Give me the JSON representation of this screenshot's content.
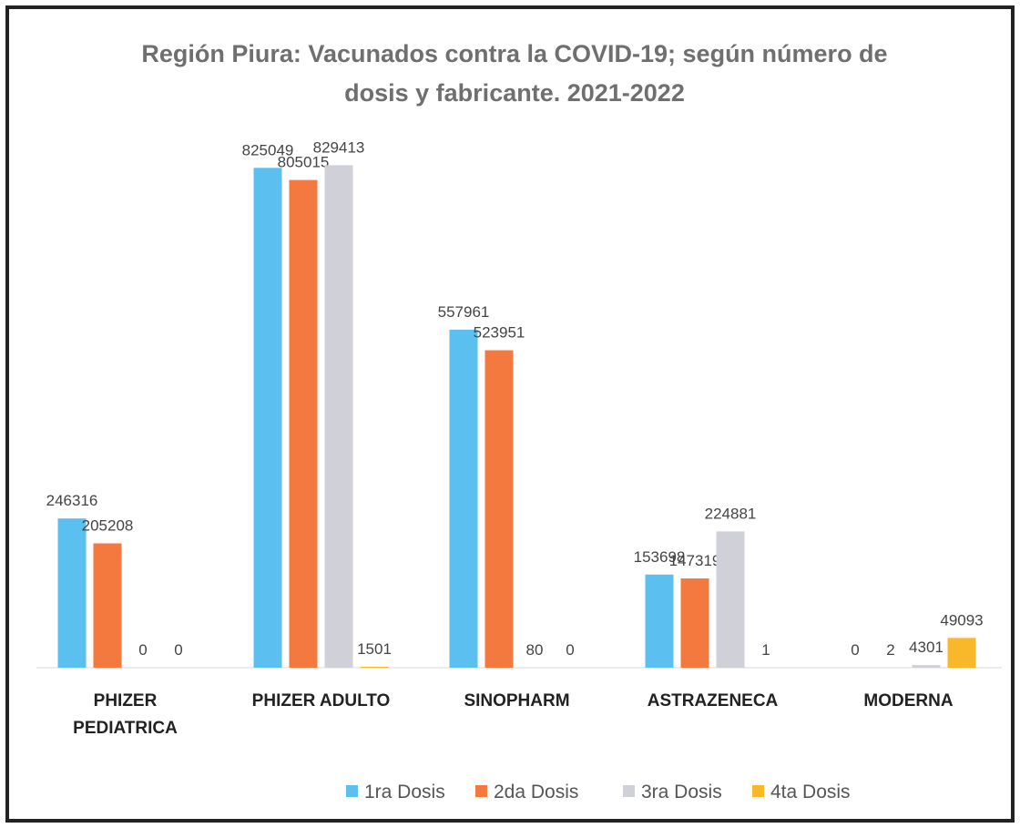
{
  "chart_data": {
    "type": "bar",
    "title": "Región Piura: Vacunados contra la COVID-19; según número de dosis y fabricante. 2021-2022",
    "categories": [
      "PHIZER PEDIATRICA",
      "PHIZER ADULTO",
      "SINOPHARM",
      "ASTRAZENECA",
      "MODERNA"
    ],
    "series": [
      {
        "name": "1ra Dosis",
        "color": "#5bc0f0",
        "values": [
          246316,
          825049,
          557961,
          153698,
          0
        ]
      },
      {
        "name": "2da Dosis",
        "color": "#f4793f",
        "values": [
          205208,
          805015,
          523951,
          147319,
          2
        ]
      },
      {
        "name": "3ra Dosis",
        "color": "#d0d0d8",
        "values": [
          0,
          829413,
          80,
          224881,
          4301
        ]
      },
      {
        "name": "4ta Dosis",
        "color": "#f9b829",
        "values": [
          0,
          1501,
          0,
          1,
          49093
        ]
      }
    ],
    "legend": "bottom"
  }
}
